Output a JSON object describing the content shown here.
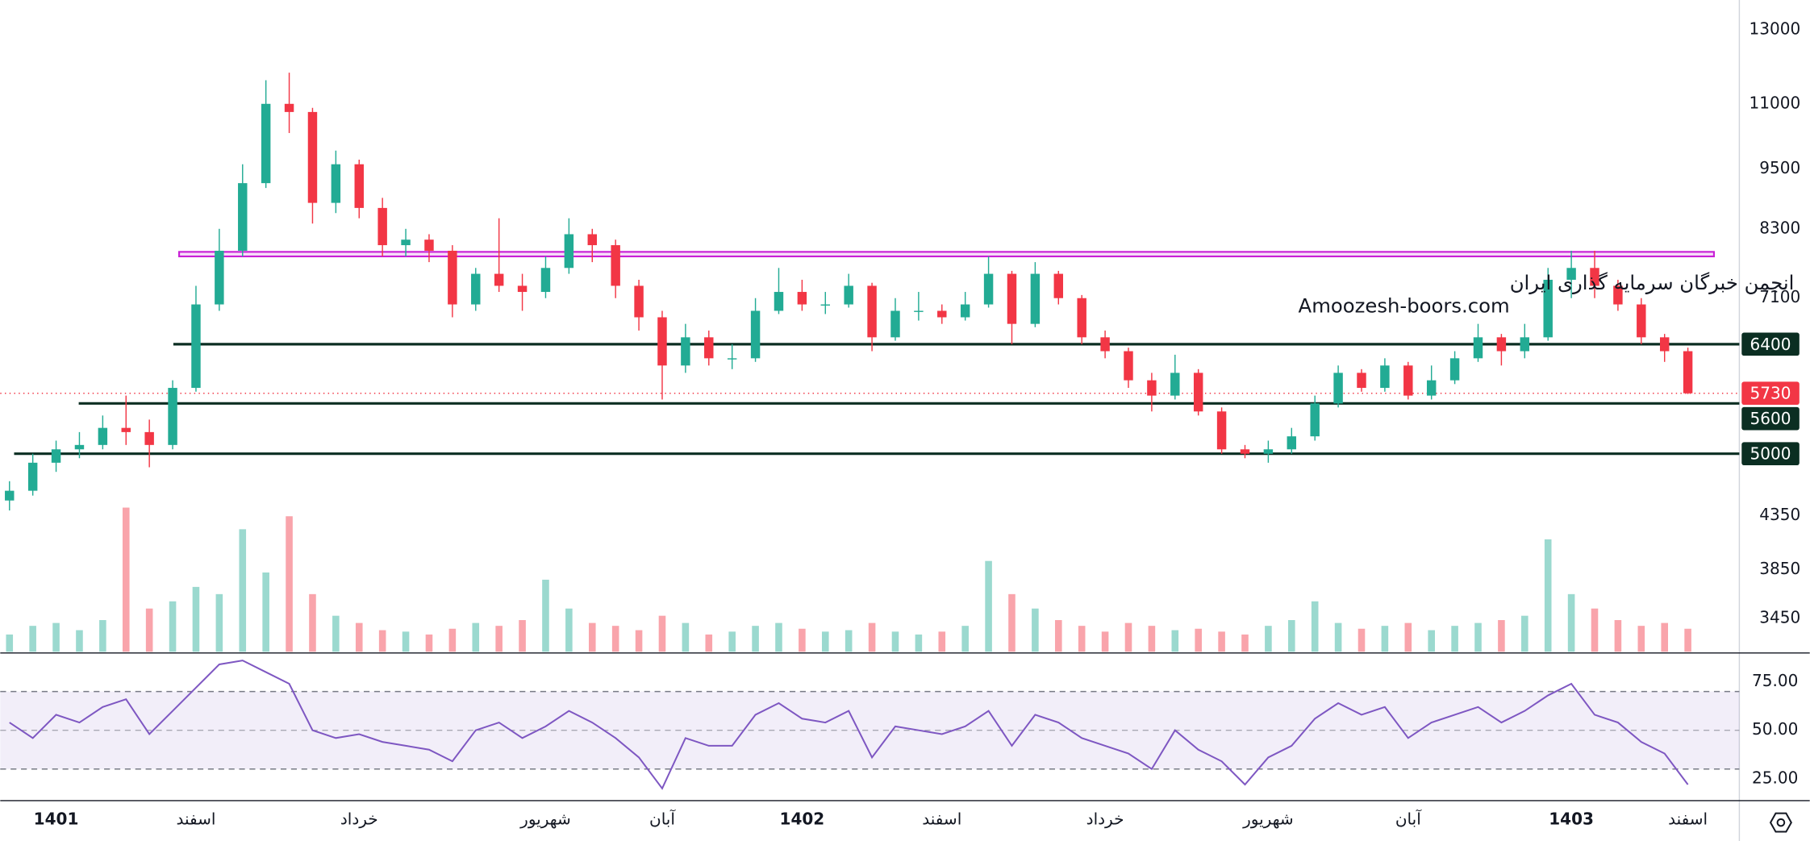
{
  "chart_data": {
    "type": "candlestick",
    "categories": [
      null,
      null,
      "1401",
      null,
      null,
      null,
      null,
      null,
      "اسفند",
      null,
      null,
      null,
      null,
      null,
      null,
      "خرداد",
      null,
      null,
      null,
      null,
      null,
      null,
      null,
      "شهریور",
      null,
      null,
      null,
      null,
      "آبان",
      null,
      null,
      null,
      null,
      null,
      "1402",
      null,
      null,
      null,
      null,
      null,
      "اسفند",
      null,
      null,
      null,
      null,
      null,
      null,
      "خرداد",
      null,
      null,
      null,
      null,
      null,
      null,
      "شهریور",
      null,
      null,
      null,
      null,
      null,
      "آبان",
      null,
      null,
      null,
      null,
      null,
      null,
      "1403",
      null,
      null,
      null,
      null,
      "اسفند"
    ],
    "open": [
      4500,
      4600,
      4900,
      5050,
      5100,
      5300,
      5250,
      5100,
      5800,
      7000,
      7900,
      9200,
      11000,
      10800,
      8800,
      9600,
      8700,
      8000,
      8100,
      7900,
      7000,
      7500,
      7300,
      7200,
      7600,
      8200,
      8000,
      7300,
      6800,
      6100,
      6500,
      6200,
      6200,
      6900,
      7200,
      7000,
      7000,
      7300,
      6500,
      6900,
      6900,
      6800,
      7000,
      7500,
      6700,
      7500,
      7100,
      6500,
      6300,
      5900,
      5700,
      6000,
      5500,
      5050,
      5000,
      5050,
      5200,
      5600,
      6000,
      5800,
      6100,
      5700,
      5900,
      6200,
      6500,
      6300,
      6500,
      7400,
      7600,
      7300,
      7000,
      6500,
      6300
    ],
    "high": [
      4700,
      5000,
      5150,
      5250,
      5450,
      5700,
      5400,
      5900,
      7300,
      8300,
      9600,
      11600,
      11800,
      10900,
      9900,
      9700,
      8900,
      8300,
      8200,
      8000,
      7600,
      8500,
      7500,
      7800,
      8500,
      8300,
      8100,
      7400,
      6900,
      6700,
      6600,
      6400,
      7100,
      7600,
      7400,
      7200,
      7500,
      7350,
      7100,
      7200,
      7000,
      7200,
      7800,
      7550,
      7700,
      7550,
      7150,
      6600,
      6350,
      6000,
      6250,
      6050,
      5550,
      5100,
      5150,
      5300,
      5700,
      6100,
      6050,
      6200,
      6150,
      6100,
      6300,
      6700,
      6550,
      6700,
      7600,
      7900,
      7900,
      7400,
      7100,
      6550,
      6350
    ],
    "low": [
      4400,
      4550,
      4800,
      4950,
      5050,
      5100,
      4850,
      5050,
      5750,
      6900,
      7800,
      9100,
      10300,
      8400,
      8600,
      8500,
      7800,
      7800,
      7700,
      6800,
      6900,
      7200,
      6900,
      7100,
      7500,
      7700,
      7100,
      6600,
      5650,
      6000,
      6100,
      6050,
      6150,
      6850,
      6900,
      6850,
      6950,
      6300,
      6450,
      6750,
      6700,
      6750,
      6950,
      6400,
      6650,
      7000,
      6400,
      6200,
      5800,
      5500,
      5650,
      5450,
      5000,
      4950,
      4900,
      5000,
      5150,
      5550,
      5750,
      5750,
      5650,
      5650,
      5850,
      6150,
      6100,
      6200,
      6450,
      7100,
      7100,
      6900,
      6400,
      6150,
      5720
    ],
    "close": [
      4600,
      4900,
      5050,
      5100,
      5300,
      5250,
      5100,
      5800,
      7000,
      7900,
      9200,
      11000,
      10800,
      8800,
      9600,
      8700,
      8000,
      8100,
      7900,
      7000,
      7500,
      7300,
      7200,
      7600,
      8200,
      8000,
      7300,
      6800,
      6100,
      6500,
      6200,
      6200,
      6900,
      7200,
      7000,
      7000,
      7300,
      6500,
      6900,
      6900,
      6800,
      7000,
      7500,
      6700,
      7500,
      7100,
      6500,
      6300,
      5900,
      5700,
      6000,
      5500,
      5050,
      5000,
      5050,
      5200,
      5600,
      6000,
      5800,
      6100,
      5700,
      5900,
      6200,
      6500,
      6300,
      6500,
      7400,
      7600,
      7300,
      7000,
      6500,
      6300,
      5730
    ],
    "up_color": "#22ab94",
    "down_color": "#f23645",
    "log_scale": true,
    "ylim": [
      3200,
      13900
    ],
    "yticks": [
      3450,
      3850,
      4350,
      7100,
      8300,
      9500,
      11000,
      13000
    ],
    "levels": [
      6400,
      5600,
      5000
    ],
    "level_color": "#0b2e22",
    "last_price": 5730,
    "zone": [
      7800,
      7880
    ],
    "zone_color": "#c81fd6",
    "volume": [
      12,
      18,
      20,
      15,
      22,
      100,
      30,
      35,
      45,
      40,
      85,
      55,
      94,
      40,
      25,
      20,
      15,
      14,
      12,
      16,
      20,
      18,
      22,
      50,
      30,
      20,
      18,
      15,
      25,
      20,
      12,
      14,
      18,
      20,
      16,
      14,
      15,
      20,
      14,
      12,
      14,
      18,
      63,
      40,
      30,
      22,
      18,
      14,
      20,
      18,
      15,
      16,
      14,
      12,
      18,
      22,
      35,
      20,
      16,
      18,
      20,
      15,
      18,
      20,
      22,
      25,
      78,
      40,
      30,
      22,
      18,
      20,
      16
    ],
    "rsi": {
      "values": [
        54,
        46,
        58,
        54,
        62,
        66,
        48,
        60,
        72,
        84,
        86,
        80,
        74,
        50,
        46,
        48,
        44,
        42,
        40,
        34,
        50,
        54,
        46,
        52,
        60,
        54,
        46,
        36,
        20,
        46,
        42,
        42,
        58,
        64,
        56,
        54,
        60,
        36,
        52,
        50,
        48,
        52,
        60,
        42,
        58,
        54,
        46,
        42,
        38,
        30,
        50,
        40,
        34,
        22,
        36,
        42,
        56,
        64,
        58,
        62,
        46,
        54,
        58,
        62,
        54,
        60,
        68,
        74,
        58,
        54,
        44,
        38,
        22
      ],
      "color": "#7e57c2",
      "ylim": [
        14.3,
        89.3
      ],
      "yticks": [
        {
          "value": 75,
          "label": "75.00"
        },
        {
          "value": 50,
          "label": "50.00"
        },
        {
          "value": 25,
          "label": "25.00"
        }
      ],
      "band": [
        30,
        70
      ]
    },
    "watermark": [
      "انجمن خبرگان سرمایه گذاری ایران",
      "Amoozesh-boors.com"
    ]
  }
}
